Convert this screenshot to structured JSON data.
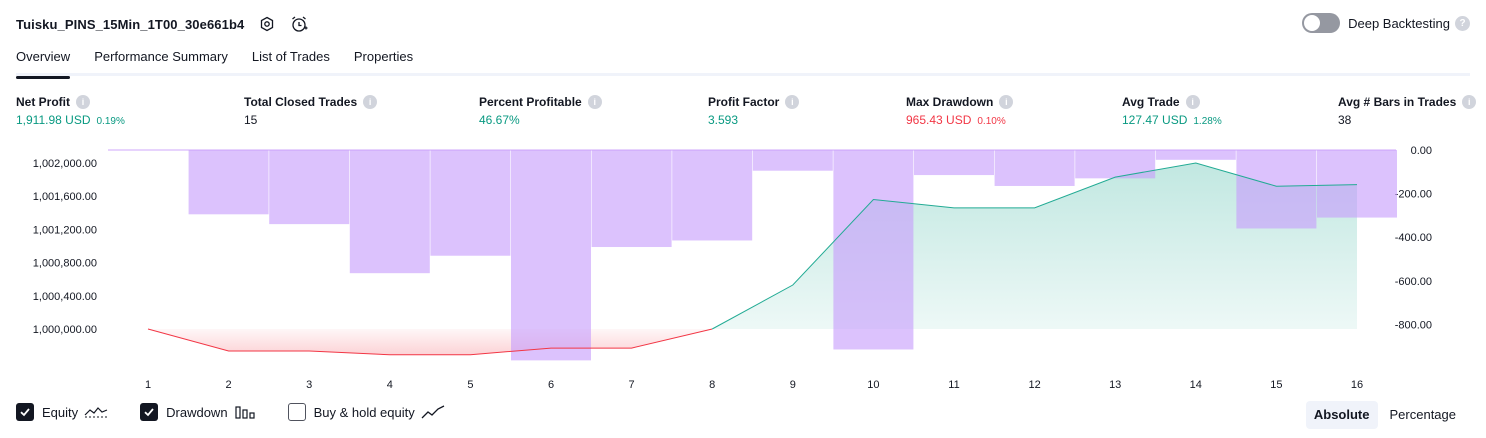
{
  "header": {
    "strategy_name": "Tuisku_PINS_15Min_1T00_30e661b4",
    "settings_icon": "gear-icon",
    "alert_icon": "alarm-plus-icon"
  },
  "deep_backtesting": {
    "label": "Deep Backtesting",
    "enabled": false,
    "help": "?"
  },
  "tabs": [
    {
      "label": "Overview",
      "active": true
    },
    {
      "label": "Performance Summary",
      "active": false
    },
    {
      "label": "List of Trades",
      "active": false
    },
    {
      "label": "Properties",
      "active": false
    }
  ],
  "metrics": {
    "net_profit": {
      "label": "Net Profit",
      "value": "1,911.98 USD",
      "pct": "0.19%"
    },
    "total_closed_trades": {
      "label": "Total Closed Trades",
      "value": "15"
    },
    "percent_profitable": {
      "label": "Percent Profitable",
      "value": "46.67%"
    },
    "profit_factor": {
      "label": "Profit Factor",
      "value": "3.593"
    },
    "max_drawdown": {
      "label": "Max Drawdown",
      "value": "965.43 USD",
      "pct": "0.10%"
    },
    "avg_trade": {
      "label": "Avg Trade",
      "value": "127.47 USD",
      "pct": "1.28%"
    },
    "avg_bars": {
      "label": "Avg # Bars in Trades",
      "value": "38"
    }
  },
  "colors": {
    "green": "#089981",
    "red": "#f23645",
    "drawdown_bar": "#cfa7fb",
    "equity_line": "#22ab94",
    "text": "#131722",
    "axis_text": "#131722"
  },
  "chart_data": {
    "type": "bar",
    "x": [
      1,
      2,
      3,
      4,
      5,
      6,
      7,
      8,
      9,
      10,
      11,
      12,
      13,
      14,
      15,
      16
    ],
    "left_axis": {
      "ticks": [
        "1,002,000.00",
        "1,001,600.00",
        "1,001,200.00",
        "1,000,800.00",
        "1,000,400.00",
        "1,000,000.00"
      ],
      "range": [
        999800,
        1002120
      ]
    },
    "right_axis": {
      "ticks": [
        "0.00",
        "-200.00",
        "-400.00",
        "-600.00",
        "-800.00"
      ],
      "range": [
        -965,
        0
      ]
    },
    "series": [
      {
        "name": "Equity",
        "type": "area",
        "values": [
          1000000,
          999735,
          999735,
          999690,
          999690,
          999770,
          999770,
          1000000,
          1000530,
          1001560,
          1001460,
          1001460,
          1001830,
          1002000,
          1001720,
          1001740
        ],
        "above_color": "#22ab94",
        "below_color": "#f23645"
      },
      {
        "name": "Drawdown",
        "type": "bar",
        "values": [
          0,
          -295,
          -340,
          -565,
          -485,
          -965,
          -445,
          -415,
          -95,
          -915,
          -115,
          -165,
          -130,
          -45,
          -360,
          -310
        ]
      }
    ]
  },
  "legend": [
    {
      "label": "Equity",
      "checked": true,
      "icon": "equity-line-icon"
    },
    {
      "label": "Drawdown",
      "checked": true,
      "icon": "drawdown-bars-icon"
    },
    {
      "label": "Buy & hold equity",
      "checked": false,
      "icon": "buy-hold-line-icon"
    }
  ],
  "modes": [
    {
      "label": "Absolute",
      "active": true
    },
    {
      "label": "Percentage",
      "active": false
    }
  ]
}
